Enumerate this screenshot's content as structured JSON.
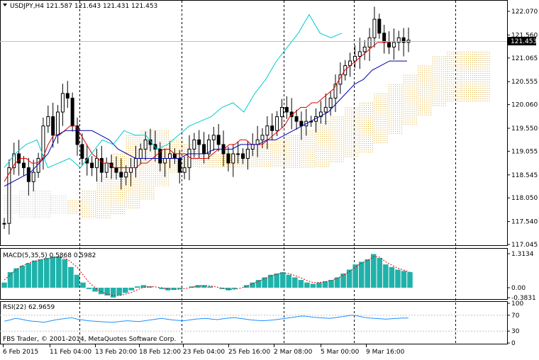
{
  "window": {
    "symbol_line": "USDJPY,H4  121.587 121.643 121.431 121.453",
    "copyright": "FBS Trader, © 2001-2014, MetaQuotes Software Corp."
  },
  "colors": {
    "grid": "#000000",
    "candle_up": "#ffffff",
    "candle_body": "#000000",
    "tenkan": "#e00000",
    "kijun": "#0000aa",
    "chikou": "#00cccc",
    "kumo_bull": "#daa520",
    "kumo_bear": "#c0c0c0",
    "macd_hist": "#20b2aa",
    "macd_signal": "#e00000",
    "rsi": "#1e90ff"
  },
  "chart_data": [
    {
      "type": "candlestick",
      "title": "USDJPY,H4",
      "ohlc_current": {
        "open": 121.587,
        "high": 121.643,
        "low": 121.431,
        "close": 121.453
      },
      "last_price_label": "121.453",
      "ylim": [
        117.045,
        122.07
      ],
      "y_ticks": [
        "122.070",
        "121.560",
        "121.065",
        "120.555",
        "120.060",
        "119.550",
        "119.055",
        "118.545",
        "118.050",
        "117.540",
        "117.045"
      ],
      "x_ticks": [
        "6 Feb 2015",
        "11 Feb 04:00",
        "13 Feb 20:00",
        "18 Feb 12:00",
        "23 Feb 04:00",
        "25 Feb 16:00",
        "2 Mar 08:00",
        "5 Mar 00:00",
        "9 Mar 16:00"
      ],
      "close": [
        117.5,
        118.7,
        119.0,
        118.8,
        118.7,
        118.4,
        118.6,
        118.9,
        119.6,
        119.8,
        119.4,
        119.9,
        120.3,
        120.2,
        119.6,
        119.2,
        118.9,
        118.8,
        118.7,
        118.9,
        118.6,
        118.8,
        118.7,
        118.6,
        118.5,
        118.6,
        118.7,
        118.9,
        119.1,
        119.3,
        119.2,
        119.1,
        118.8,
        118.9,
        119.0,
        118.9,
        118.6,
        118.7,
        119.1,
        119.3,
        119.2,
        119.0,
        119.3,
        119.4,
        119.2,
        119.0,
        118.8,
        119.0,
        119.0,
        118.9,
        119.1,
        119.2,
        119.3,
        119.4,
        119.6,
        119.5,
        119.8,
        120.0,
        119.9,
        119.8,
        119.7,
        119.6,
        119.7,
        119.7,
        119.8,
        119.9,
        120.0,
        120.2,
        120.5,
        120.7,
        120.9,
        121.0,
        121.1,
        121.2,
        121.3,
        121.5,
        121.9,
        121.6,
        121.4,
        121.3,
        121.4,
        121.5,
        121.4,
        121.45
      ],
      "tenkan": [
        118.4,
        118.6,
        118.8,
        118.9,
        118.9,
        118.8,
        118.8,
        118.9,
        119.2,
        119.4,
        119.4,
        119.5,
        119.6,
        119.6,
        119.4,
        119.2,
        119.0,
        118.9,
        118.8,
        118.8,
        118.7,
        118.7,
        118.7,
        118.7,
        118.7,
        118.8,
        118.8,
        118.9,
        119.0,
        119.1,
        119.1,
        119.0,
        119.0,
        119.0,
        118.9,
        118.9,
        118.9,
        118.9,
        119.0,
        119.1,
        119.1,
        119.2,
        119.2,
        119.3,
        119.3,
        119.2,
        119.2,
        119.2,
        119.3,
        119.4,
        119.5,
        119.6,
        119.8,
        119.9,
        120.0,
        120.0,
        120.1,
        120.1,
        120.2,
        120.3,
        120.4,
        120.6,
        120.8,
        120.9,
        121.0,
        121.1,
        121.2,
        121.3,
        121.4,
        121.4,
        121.4
      ],
      "kijun": [
        118.3,
        118.4,
        118.5,
        118.6,
        118.8,
        119.0,
        119.4,
        119.5,
        119.5,
        119.5,
        119.5,
        119.4,
        119.3,
        119.1,
        119.0,
        118.9,
        118.9,
        118.9,
        118.9,
        118.9,
        118.9,
        119.0,
        119.0,
        119.0,
        119.1,
        119.1,
        119.1,
        119.2,
        119.2,
        119.2,
        119.3,
        119.3,
        119.4,
        119.5,
        119.6,
        119.7,
        119.8,
        119.9,
        120.1,
        120.3,
        120.5,
        120.6,
        120.8,
        120.9,
        121.0,
        121.0,
        121.0
      ],
      "chikou": [
        118.7,
        119.0,
        119.2,
        119.3,
        118.7,
        118.8,
        118.9,
        118.7,
        119.0,
        119.3,
        119.2,
        119.5,
        119.4,
        119.4,
        119.1,
        119.2,
        119.4,
        119.6,
        119.7,
        119.8,
        120.0,
        120.1,
        119.9,
        120.3,
        120.6,
        121.0,
        121.3,
        121.6,
        122.0,
        121.6,
        121.5,
        121.6
      ],
      "kumo_bull_top": [
        118.0,
        118.2,
        118.5,
        119.0,
        119.4,
        119.5,
        119.5,
        119.3,
        119.2,
        119.0,
        119.0,
        119.0,
        119.1,
        119.2,
        119.3,
        119.4,
        119.5,
        119.7,
        119.8,
        120.0,
        120.1,
        120.3,
        120.5,
        120.7,
        120.9,
        121.1,
        121.2,
        121.2,
        121.2
      ],
      "kumo_bull_bottom": [
        117.7,
        117.6,
        117.6,
        117.7,
        117.8,
        118.0,
        118.3,
        118.6,
        118.7,
        118.7,
        118.7,
        118.7,
        118.7,
        118.7,
        118.7,
        118.7,
        118.7,
        118.7,
        118.8,
        118.9,
        119.0,
        119.2,
        119.4,
        119.6,
        119.8,
        120.0,
        120.1,
        120.1,
        120.1
      ],
      "kumo_bear_top": [
        118.1,
        118.2,
        118.2,
        118.1
      ],
      "kumo_bear_bottom": [
        117.7,
        117.6,
        117.6,
        117.7
      ]
    },
    {
      "type": "bar",
      "title": "MACD(5,35,5) 0.5868 0.5982",
      "series": [
        {
          "name": "MACD",
          "values": [
            0.2,
            0.6,
            0.75,
            0.85,
            0.95,
            1.05,
            1.1,
            1.15,
            1.2,
            1.2,
            1.1,
            0.8,
            0.5,
            0.2,
            -0.05,
            -0.15,
            -0.25,
            -0.3,
            -0.38,
            -0.3,
            -0.2,
            -0.1,
            0.05,
            0.1,
            0.05,
            0.0,
            -0.05,
            -0.1,
            -0.08,
            -0.05,
            0.0,
            0.05,
            0.1,
            0.1,
            0.05,
            0.0,
            -0.05,
            -0.1,
            -0.05,
            0.0,
            0.1,
            0.2,
            0.3,
            0.4,
            0.5,
            0.55,
            0.6,
            0.5,
            0.4,
            0.3,
            0.2,
            0.15,
            0.2,
            0.25,
            0.3,
            0.4,
            0.55,
            0.7,
            0.9,
            1.0,
            1.1,
            1.3,
            1.15,
            0.9,
            0.8,
            0.7,
            0.65,
            0.6
          ]
        },
        {
          "name": "Signal",
          "values": [
            0.3,
            0.5,
            0.7,
            0.85,
            0.95,
            1.02,
            1.08,
            1.12,
            1.16,
            1.18,
            1.15,
            1.0,
            0.8,
            0.5,
            0.2,
            0.0,
            -0.15,
            -0.25,
            -0.3,
            -0.3,
            -0.25,
            -0.18,
            -0.08,
            0.02,
            0.05,
            0.03,
            0.0,
            -0.05,
            -0.07,
            -0.06,
            -0.03,
            0.02,
            0.07,
            0.08,
            0.07,
            0.03,
            -0.02,
            -0.06,
            -0.06,
            -0.02,
            0.05,
            0.15,
            0.25,
            0.35,
            0.45,
            0.52,
            0.57,
            0.55,
            0.47,
            0.38,
            0.28,
            0.2,
            0.2,
            0.23,
            0.28,
            0.36,
            0.48,
            0.62,
            0.8,
            0.95,
            1.05,
            1.2,
            1.18,
            1.0,
            0.87,
            0.76,
            0.68,
            0.6
          ]
        }
      ],
      "y_ticks": [
        "1.3134",
        "0.00",
        "-0.3831"
      ],
      "ylim": [
        -0.3831,
        1.3134
      ]
    },
    {
      "type": "line",
      "title": "RSI(22) 62.9659",
      "series": [
        {
          "name": "RSI",
          "values": [
            55,
            58,
            62,
            60,
            57,
            55,
            54,
            52,
            55,
            58,
            60,
            62,
            64,
            60,
            58,
            56,
            55,
            54,
            53,
            52,
            53,
            55,
            56,
            55,
            54,
            56,
            58,
            60,
            62,
            60,
            58,
            57,
            56,
            58,
            60,
            61,
            62,
            60,
            59,
            61,
            63,
            64,
            62,
            60,
            58,
            57,
            56,
            57,
            58,
            60,
            62,
            64,
            66,
            68,
            67,
            65,
            64,
            63,
            62,
            64,
            66,
            68,
            70,
            68,
            65,
            63,
            62,
            61,
            60,
            61,
            62,
            63,
            62.97
          ]
        }
      ],
      "y_ticks": [
        "100",
        "70",
        "30",
        "0"
      ],
      "levels": [
        70,
        30
      ],
      "ylim": [
        0,
        100
      ]
    }
  ]
}
